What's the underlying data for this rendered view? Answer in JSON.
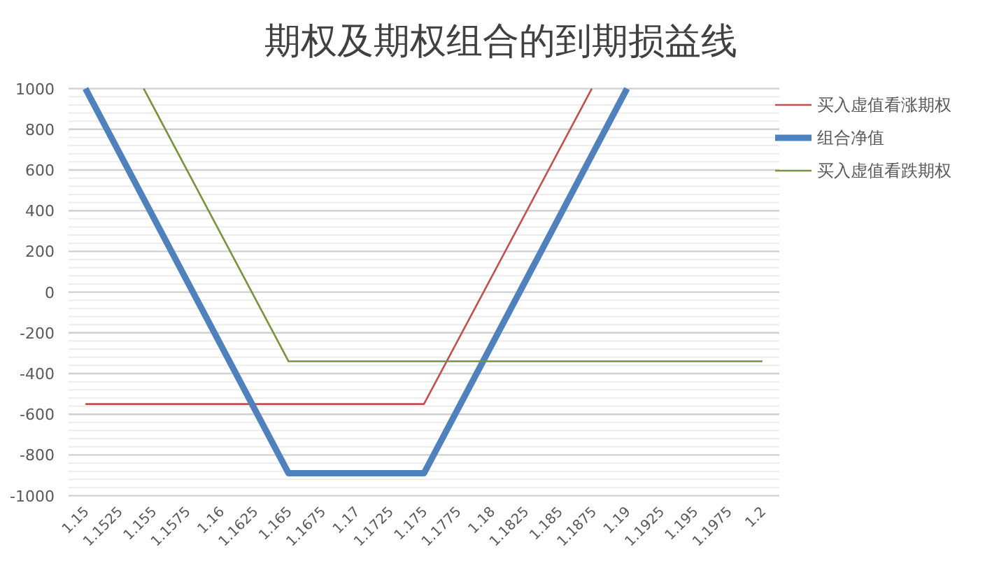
{
  "chart_data": {
    "type": "line",
    "title": "期权及期权组合的到期损益线",
    "series": [
      {
        "name": "买入虚值看涨期权",
        "color": "#c0504d",
        "x": [
          1.15,
          1.175,
          1.1874
        ],
        "values": [
          -550,
          -550,
          1000
        ]
      },
      {
        "name": "组合净值",
        "color": "#4f81bd",
        "x": [
          1.15,
          1.165,
          1.175,
          1.19
        ],
        "values": [
          1000,
          -890,
          -890,
          1000
        ]
      },
      {
        "name": "买入虚值看跌期权",
        "color": "#77933c",
        "x": [
          1.1543,
          1.165,
          1.2
        ],
        "values": [
          1000,
          -340,
          -340
        ]
      }
    ],
    "xlim": [
      1.14875,
      1.20125
    ],
    "xticks": [
      1.15,
      1.1525,
      1.155,
      1.1575,
      1.16,
      1.1625,
      1.165,
      1.1675,
      1.17,
      1.1725,
      1.175,
      1.1775,
      1.18,
      1.1825,
      1.185,
      1.1875,
      1.19,
      1.1925,
      1.195,
      1.1975,
      1.2
    ],
    "ylim": [
      -1000,
      1000
    ],
    "yticks": [
      -1000,
      -800,
      -600,
      -400,
      -200,
      0,
      200,
      400,
      600,
      800,
      1000
    ],
    "grid": "y",
    "legend": "right",
    "marker": "none",
    "line_style": "solid"
  }
}
